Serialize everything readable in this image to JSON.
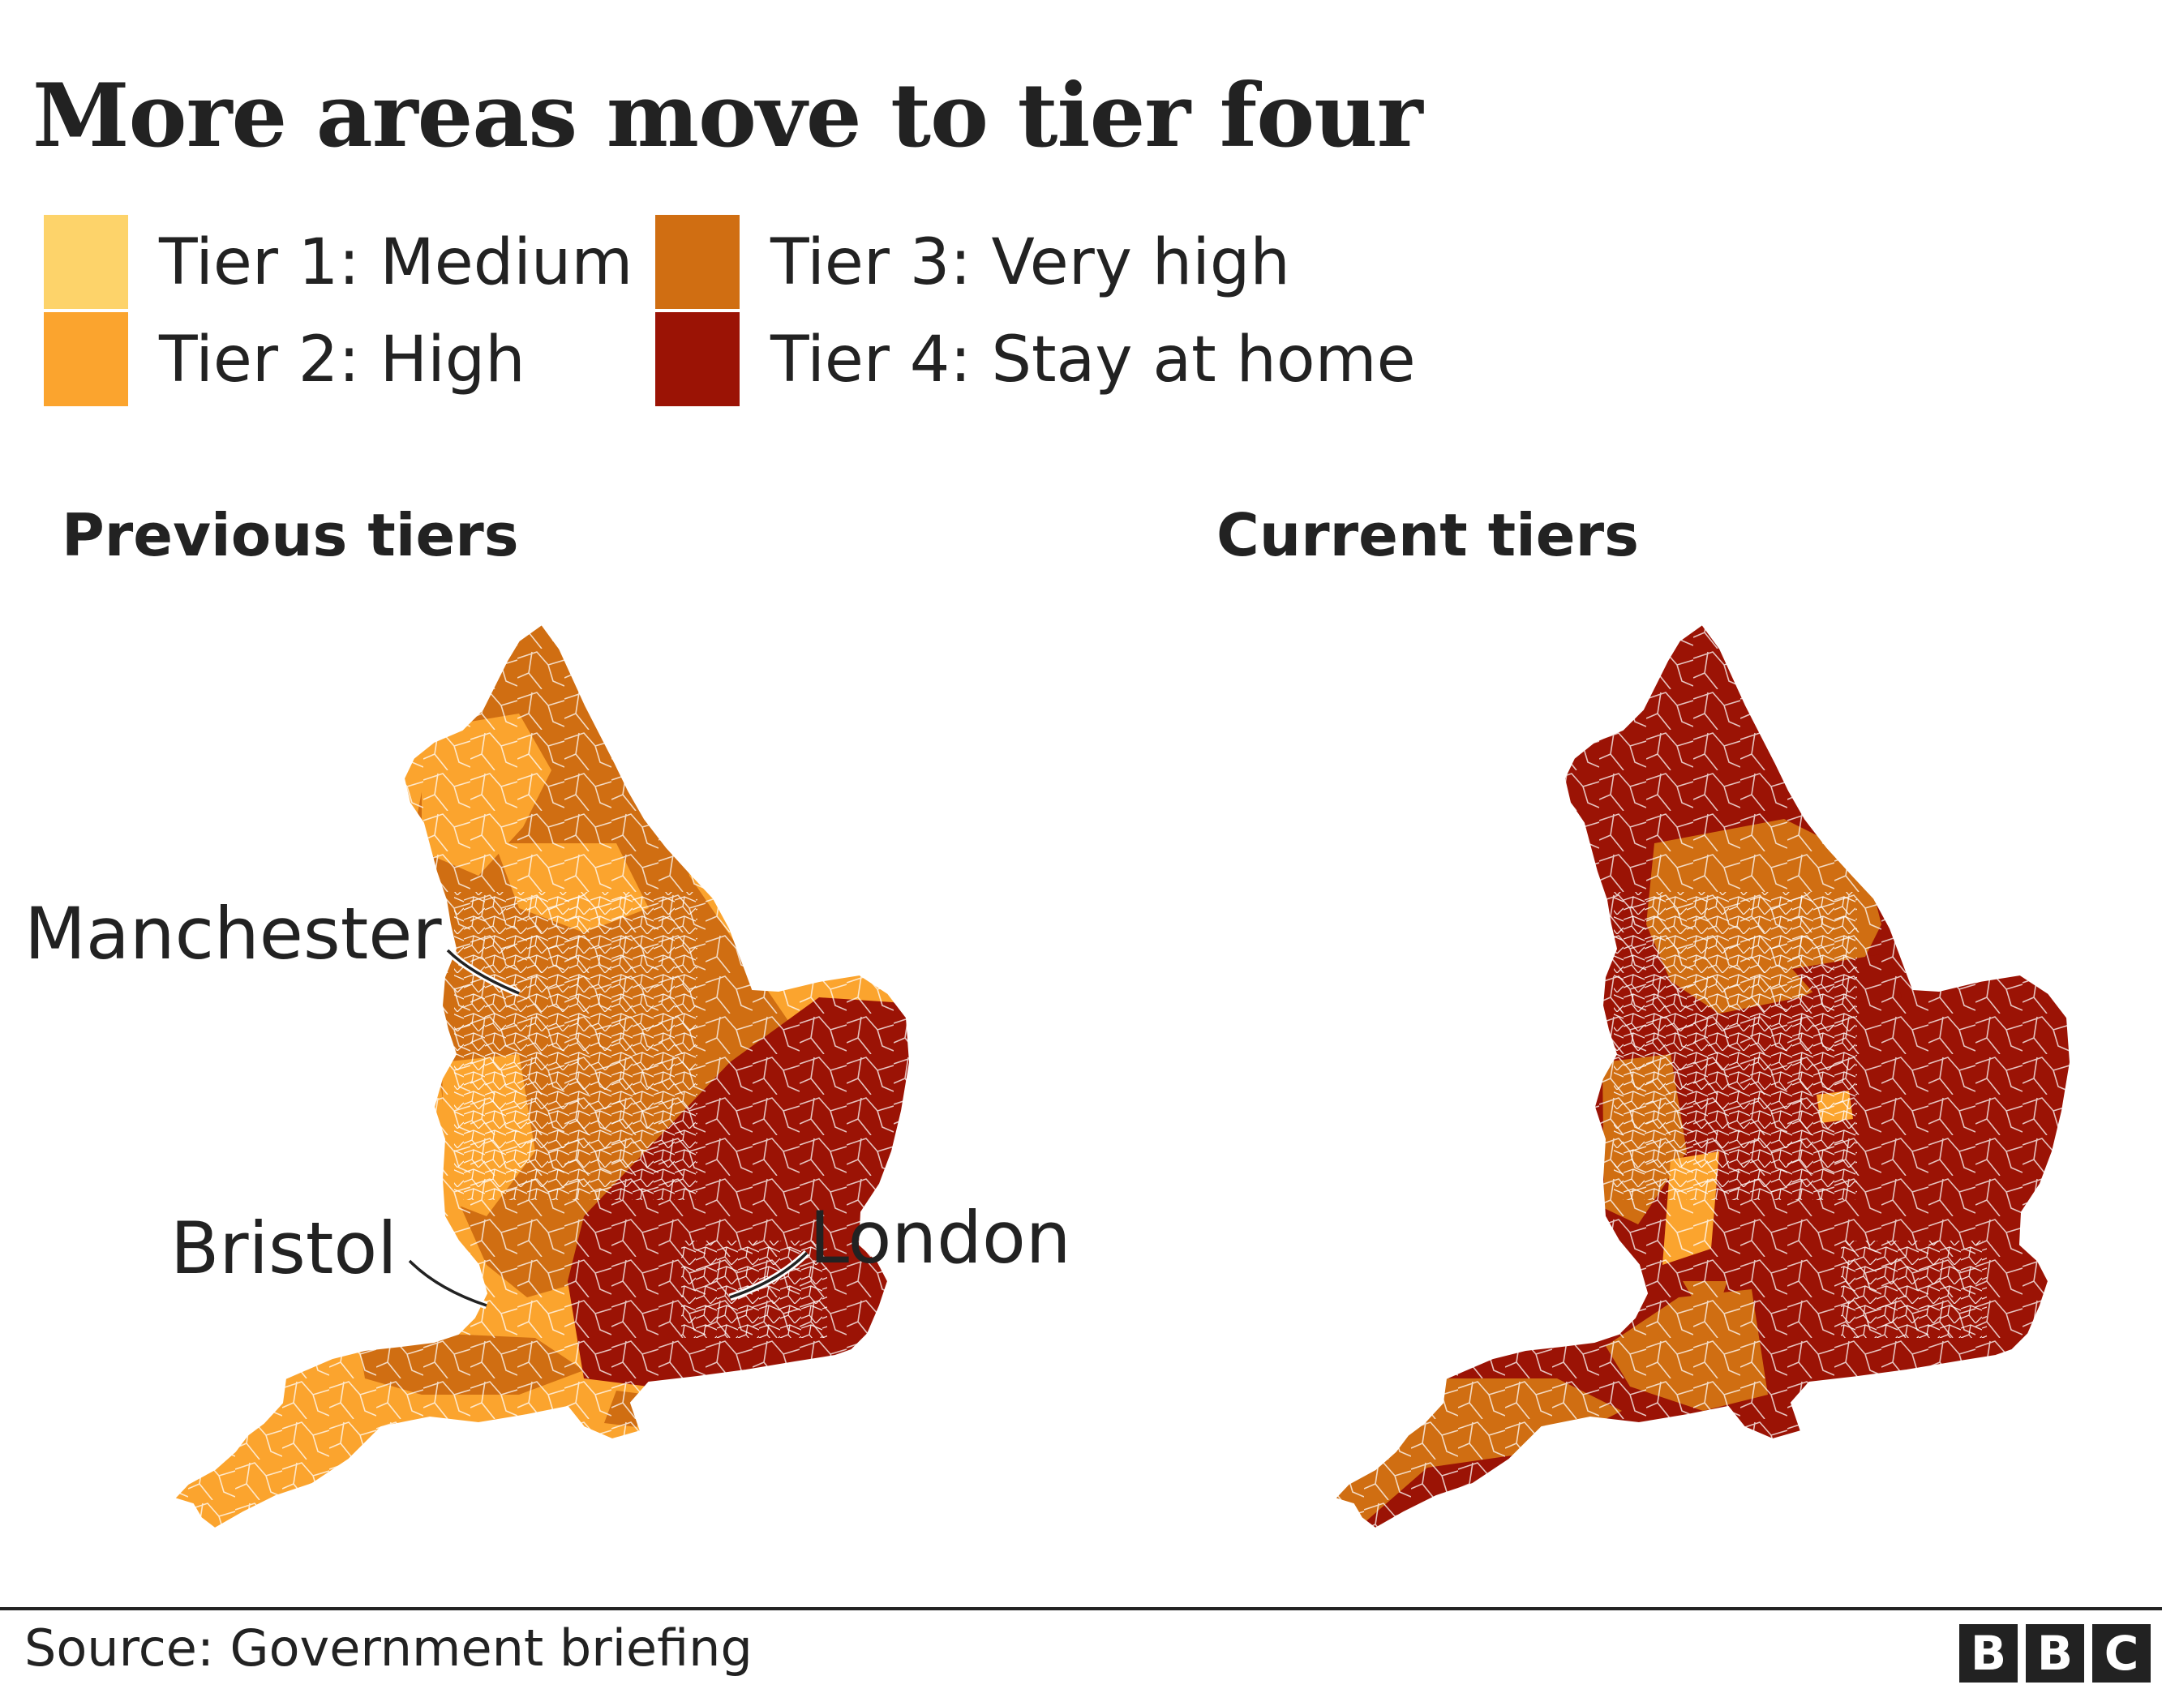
{
  "title": "More areas move to tier four",
  "legend": [
    {
      "label": "Tier 1: Medium",
      "color": "#FDD36A"
    },
    {
      "label": "Tier 2: High",
      "color": "#FBA42E"
    },
    {
      "label": "Tier 3: Very high",
      "color": "#D06E12"
    },
    {
      "label": "Tier 4: Stay at home",
      "color": "#9B1305"
    }
  ],
  "maps": {
    "previous": {
      "heading": "Previous tiers",
      "callouts": {
        "manchester": "Manchester",
        "bristol": "Bristol",
        "london": "London"
      }
    },
    "current": {
      "heading": "Current tiers"
    }
  },
  "footer": {
    "source": "Source: Government briefing",
    "logo_letters": [
      "B",
      "B",
      "C"
    ]
  }
}
